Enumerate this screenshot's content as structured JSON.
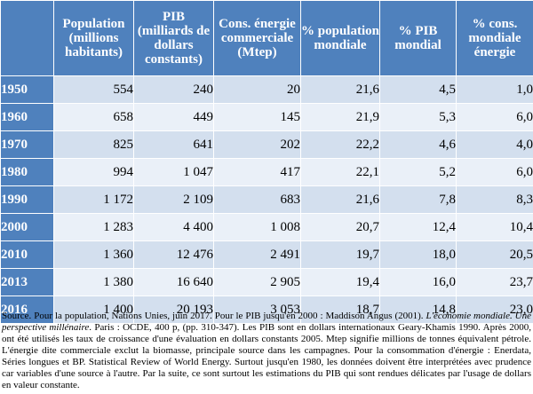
{
  "table": {
    "headers": [
      "",
      "Population (millions habitants)",
      "PIB (milliards de dollars constants)",
      "Cons. énergie commerciale (Mtep)",
      "% population mondiale",
      "% PIB mondial",
      "% cons. mondiale énergie"
    ],
    "rows": [
      {
        "year": "1950",
        "cells": [
          "554",
          "240",
          "20",
          "21,6",
          "4,5",
          "1,0"
        ]
      },
      {
        "year": "1960",
        "cells": [
          "658",
          "449",
          "145",
          "21,9",
          "5,3",
          "6,0"
        ]
      },
      {
        "year": "1970",
        "cells": [
          "825",
          "641",
          "202",
          "22,2",
          "4,6",
          "4,0"
        ]
      },
      {
        "year": "1980",
        "cells": [
          "994",
          "1 047",
          "417",
          "22,1",
          "5,2",
          "6,0"
        ]
      },
      {
        "year": "1990",
        "cells": [
          "1 172",
          "2 109",
          "683",
          "21,6",
          "7,8",
          "8,3"
        ]
      },
      {
        "year": "2000",
        "cells": [
          "1 283",
          "4 400",
          "1 008",
          "20,7",
          "12,4",
          "10,4"
        ]
      },
      {
        "year": "2010",
        "cells": [
          "1 360",
          "12 476",
          "2 491",
          "19,7",
          "18,0",
          "20,5"
        ]
      },
      {
        "year": "2013",
        "cells": [
          "1 380",
          "16 640",
          "2 905",
          "19,4",
          "16,0",
          "23,7"
        ]
      },
      {
        "year": "2016",
        "cells": [
          "1 400",
          "20 193",
          "3 053",
          "18,7",
          "14,8",
          "23,0"
        ]
      }
    ]
  },
  "source": {
    "part1": "Source. Pour la population, Nations Unies, juin 2017. Pour le PIB jusqu'en 2000 : Maddison Angus (2001). ",
    "title": "L'économie mondiale. Une perspective millénaire",
    "part2": ". Paris : OCDE, 400 p, (pp. 310-347). Les PIB sont en dollars internationaux Geary-Khamis 1990. Après 2000, ont été utilisés les taux de croissance d'une évaluation en dollars constants 2005. Mtep signifie millions de tonnes équivalent pétrole. L'énergie dite commerciale exclut la biomasse, principale source dans les campagnes. Pour la consommation d'énergie : Enerdata, Séries longues et BP. Statistical Review of World Energy. Surtout jusqu'en 1980, les données doivent être interprétées avec prudence car variables d'une source à l'autre. Par la suite, ce sont surtout les estimations du PIB qui sont rendues délicates par l'usage de dollars en valeur constante."
  }
}
